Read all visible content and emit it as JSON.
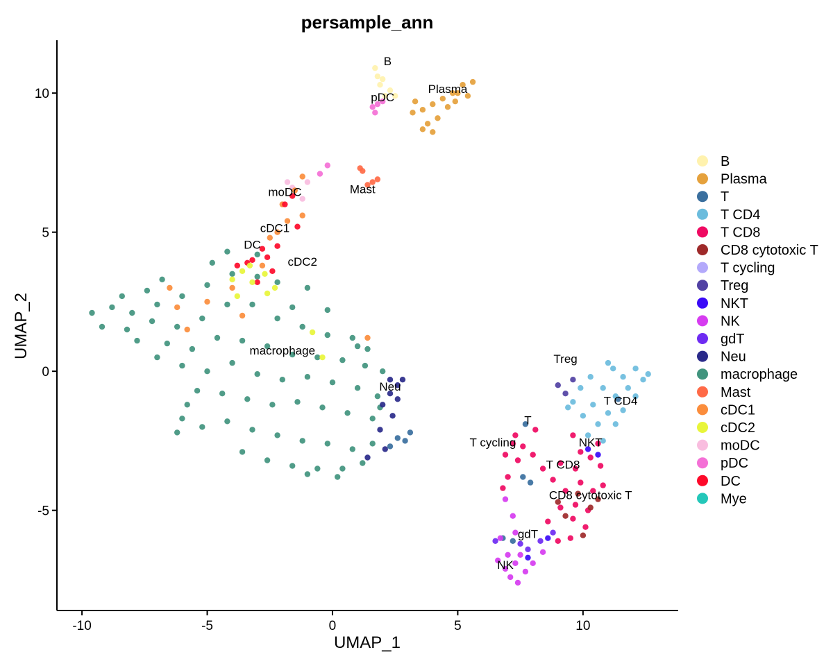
{
  "chart_data": {
    "type": "scatter",
    "title": "persample_ann",
    "xlabel": "UMAP_1",
    "ylabel": "UMAP_2",
    "xlim": [
      -11,
      13.8
    ],
    "ylim": [
      -8.6,
      11.9
    ],
    "xticks": [
      -10,
      -5,
      0,
      5,
      10
    ],
    "yticks": [
      -5,
      0,
      5,
      10
    ],
    "grid": false,
    "legend_position": "right",
    "legend": [
      {
        "name": "B",
        "color": "#FFF2AE"
      },
      {
        "name": "Plasma",
        "color": "#E5A13C"
      },
      {
        "name": "T",
        "color": "#3A6F9E"
      },
      {
        "name": "T CD4",
        "color": "#6BBCDD"
      },
      {
        "name": "T CD8",
        "color": "#EF0A62"
      },
      {
        "name": "CD8 cytotoxic T",
        "color": "#9E2A2A"
      },
      {
        "name": "T cycling",
        "color": "#B3A9FB"
      },
      {
        "name": "Treg",
        "color": "#5141A3"
      },
      {
        "name": "NKT",
        "color": "#3A0AF7"
      },
      {
        "name": "NK",
        "color": "#D63CF0"
      },
      {
        "name": "gdT",
        "color": "#6E2BF2"
      },
      {
        "name": "Neu",
        "color": "#2A2A8A"
      },
      {
        "name": "macrophage",
        "color": "#41947E"
      },
      {
        "name": "Mast",
        "color": "#FF6A47"
      },
      {
        "name": "cDC1",
        "color": "#FB8D3C"
      },
      {
        "name": "cDC2",
        "color": "#E8F53A"
      },
      {
        "name": "moDC",
        "color": "#F9BDDF"
      },
      {
        "name": "pDC",
        "color": "#F470D6"
      },
      {
        "name": "DC",
        "color": "#FD0A2A"
      },
      {
        "name": "Mye",
        "color": "#24C7B9"
      }
    ],
    "cluster_labels": [
      {
        "text": "B",
        "x": 2.2,
        "y": 11.0
      },
      {
        "text": "Plasma",
        "x": 4.6,
        "y": 10.0
      },
      {
        "text": "pDC",
        "x": 2.0,
        "y": 9.7
      },
      {
        "text": "Mast",
        "x": 1.2,
        "y": 6.4
      },
      {
        "text": "moDC",
        "x": -1.9,
        "y": 6.3
      },
      {
        "text": "cDC1",
        "x": -2.3,
        "y": 5.0
      },
      {
        "text": "DC",
        "x": -3.2,
        "y": 4.4
      },
      {
        "text": "cDC2",
        "x": -1.2,
        "y": 3.8
      },
      {
        "text": "macrophage",
        "x": -2.0,
        "y": 0.6
      },
      {
        "text": "Neu",
        "x": 2.3,
        "y": -0.7
      },
      {
        "text": "Treg",
        "x": 9.3,
        "y": 0.3
      },
      {
        "text": "T CD4",
        "x": 11.5,
        "y": -1.2
      },
      {
        "text": "T",
        "x": 7.8,
        "y": -1.9
      },
      {
        "text": "T cycling",
        "x": 6.4,
        "y": -2.7
      },
      {
        "text": "NKT",
        "x": 10.3,
        "y": -2.7
      },
      {
        "text": "T CD8",
        "x": 9.2,
        "y": -3.5
      },
      {
        "text": "CD8 cytotoxic T",
        "x": 10.3,
        "y": -4.6
      },
      {
        "text": "gdT",
        "x": 7.8,
        "y": -6.0
      },
      {
        "text": "NK",
        "x": 6.9,
        "y": -7.1
      }
    ],
    "clusters": [
      {
        "name": "macrophage",
        "points": [
          [
            -9.6,
            2.1
          ],
          [
            -8.8,
            2.3
          ],
          [
            -8.0,
            2.1
          ],
          [
            -7.0,
            2.4
          ],
          [
            -6.0,
            2.7
          ],
          [
            -5.0,
            3.1
          ],
          [
            -4.0,
            3.5
          ],
          [
            -3.0,
            3.4
          ],
          [
            -2.2,
            3.2
          ],
          [
            -1.6,
            2.3
          ],
          [
            -9.2,
            1.6
          ],
          [
            -8.2,
            1.5
          ],
          [
            -7.2,
            1.8
          ],
          [
            -6.2,
            1.6
          ],
          [
            -5.2,
            1.9
          ],
          [
            -4.2,
            2.4
          ],
          [
            -3.2,
            2.4
          ],
          [
            -2.2,
            1.9
          ],
          [
            -1.2,
            1.6
          ],
          [
            -0.2,
            1.3
          ],
          [
            0.8,
            1.2
          ],
          [
            1.4,
            0.8
          ],
          [
            -7.8,
            1.1
          ],
          [
            -6.6,
            1.0
          ],
          [
            -5.6,
            0.8
          ],
          [
            -4.6,
            1.2
          ],
          [
            -3.6,
            1.1
          ],
          [
            -2.6,
            0.9
          ],
          [
            -1.6,
            0.6
          ],
          [
            -0.6,
            0.5
          ],
          [
            0.4,
            0.4
          ],
          [
            1.3,
            0.2
          ],
          [
            2.0,
            0.0
          ],
          [
            -6.0,
            0.2
          ],
          [
            -5.0,
            0.0
          ],
          [
            -4.0,
            0.3
          ],
          [
            -3.0,
            -0.1
          ],
          [
            -2.0,
            -0.3
          ],
          [
            -1.0,
            -0.2
          ],
          [
            0.0,
            -0.4
          ],
          [
            1.0,
            -0.6
          ],
          [
            1.8,
            -0.9
          ],
          [
            -5.4,
            -0.7
          ],
          [
            -4.4,
            -0.8
          ],
          [
            -3.4,
            -1.0
          ],
          [
            -2.4,
            -1.2
          ],
          [
            -1.4,
            -1.1
          ],
          [
            -0.4,
            -1.3
          ],
          [
            0.6,
            -1.5
          ],
          [
            1.6,
            -1.7
          ],
          [
            -6.0,
            -1.7
          ],
          [
            -5.2,
            -2.0
          ],
          [
            -6.2,
            -2.2
          ],
          [
            -4.2,
            -1.8
          ],
          [
            -3.2,
            -2.1
          ],
          [
            -2.2,
            -2.3
          ],
          [
            -1.2,
            -2.5
          ],
          [
            -0.2,
            -2.6
          ],
          [
            0.8,
            -2.8
          ],
          [
            1.6,
            -2.6
          ],
          [
            -3.6,
            -2.9
          ],
          [
            -2.6,
            -3.2
          ],
          [
            -1.6,
            -3.4
          ],
          [
            -0.6,
            -3.5
          ],
          [
            0.4,
            -3.5
          ],
          [
            1.2,
            -3.3
          ],
          [
            -4.8,
            3.9
          ],
          [
            -4.2,
            4.3
          ],
          [
            -3.0,
            4.2
          ],
          [
            -8.4,
            2.7
          ],
          [
            -7.4,
            2.9
          ],
          [
            -6.8,
            3.3
          ],
          [
            -1.0,
            3.0
          ],
          [
            -0.2,
            2.2
          ],
          [
            1.0,
            0.9
          ],
          [
            -7.0,
            0.5
          ],
          [
            -5.8,
            -1.2
          ],
          [
            -1.0,
            -3.7
          ],
          [
            0.2,
            -3.8
          ],
          [
            1.9,
            -1.3
          ]
        ]
      },
      {
        "name": "Neu",
        "points": [
          [
            2.3,
            -0.3
          ],
          [
            2.6,
            -0.5
          ],
          [
            2.3,
            -0.8
          ],
          [
            2.6,
            -1.0
          ],
          [
            2.0,
            -1.2
          ],
          [
            2.4,
            -1.6
          ],
          [
            1.9,
            -2.1
          ],
          [
            2.1,
            -2.8
          ],
          [
            1.4,
            -3.1
          ],
          [
            2.8,
            -0.3
          ]
        ]
      },
      {
        "name": "T",
        "points": [
          [
            2.6,
            -2.4
          ],
          [
            2.9,
            -2.5
          ],
          [
            3.1,
            -2.2
          ],
          [
            2.3,
            -2.7
          ],
          [
            7.6,
            -3.8
          ],
          [
            7.9,
            -4.0
          ],
          [
            7.2,
            -6.1
          ],
          [
            6.8,
            -6.0
          ],
          [
            11.4,
            -1.0
          ],
          [
            7.7,
            -1.9
          ]
        ]
      },
      {
        "name": "Plasma",
        "points": [
          [
            3.6,
            9.4
          ],
          [
            4.0,
            9.6
          ],
          [
            4.4,
            9.8
          ],
          [
            4.8,
            10.0
          ],
          [
            5.2,
            10.3
          ],
          [
            5.0,
            10.0
          ],
          [
            4.6,
            9.5
          ],
          [
            4.2,
            9.1
          ],
          [
            3.8,
            8.9
          ],
          [
            3.3,
            9.7
          ],
          [
            5.6,
            10.4
          ],
          [
            5.4,
            9.9
          ],
          [
            3.6,
            8.7
          ],
          [
            4.0,
            8.6
          ],
          [
            3.2,
            9.3
          ],
          [
            4.9,
            9.7
          ]
        ]
      },
      {
        "name": "B",
        "points": [
          [
            1.7,
            10.9
          ],
          [
            1.8,
            10.6
          ],
          [
            2.0,
            10.5
          ],
          [
            2.3,
            10.1
          ],
          [
            1.9,
            10.3
          ],
          [
            2.1,
            9.9
          ],
          [
            2.5,
            9.9
          ]
        ]
      },
      {
        "name": "pDC",
        "points": [
          [
            1.8,
            9.6
          ],
          [
            1.6,
            9.5
          ],
          [
            2.0,
            9.7
          ],
          [
            1.7,
            9.3
          ],
          [
            -0.2,
            7.4
          ],
          [
            -0.5,
            7.1
          ]
        ]
      },
      {
        "name": "Mast",
        "points": [
          [
            1.6,
            6.8
          ],
          [
            1.8,
            6.9
          ],
          [
            1.2,
            7.2
          ],
          [
            1.4,
            6.7
          ],
          [
            1.1,
            7.3
          ]
        ]
      },
      {
        "name": "moDC",
        "points": [
          [
            -1.6,
            6.6
          ],
          [
            -1.2,
            6.2
          ],
          [
            -1.8,
            6.8
          ],
          [
            -1.0,
            6.8
          ]
        ]
      },
      {
        "name": "cDC1",
        "points": [
          [
            -2.0,
            6.0
          ],
          [
            -1.5,
            6.5
          ],
          [
            -1.2,
            5.6
          ],
          [
            -2.2,
            5.0
          ],
          [
            -1.8,
            5.4
          ],
          [
            -2.5,
            4.8
          ],
          [
            -5.0,
            2.5
          ],
          [
            -6.2,
            2.3
          ],
          [
            -4.0,
            3.0
          ],
          [
            -1.2,
            7.0
          ],
          [
            -3.6,
            2.0
          ],
          [
            -6.5,
            3.0
          ],
          [
            -5.8,
            1.5
          ],
          [
            -2.8,
            3.8
          ],
          [
            1.4,
            1.2
          ]
        ]
      },
      {
        "name": "DC",
        "points": [
          [
            -3.2,
            4.0
          ],
          [
            -2.8,
            4.4
          ],
          [
            -3.4,
            3.9
          ],
          [
            -2.4,
            3.6
          ],
          [
            -2.6,
            4.1
          ],
          [
            -1.6,
            6.3
          ],
          [
            -1.4,
            5.2
          ],
          [
            -3.8,
            3.8
          ],
          [
            -2.2,
            4.5
          ],
          [
            -3.0,
            3.2
          ],
          [
            -1.9,
            6.0
          ]
        ]
      },
      {
        "name": "cDC2",
        "points": [
          [
            -3.6,
            3.6
          ],
          [
            -3.2,
            3.2
          ],
          [
            -2.7,
            3.5
          ],
          [
            -4.0,
            3.3
          ],
          [
            -3.3,
            3.8
          ],
          [
            -2.3,
            3.0
          ],
          [
            -3.8,
            2.7
          ],
          [
            -2.6,
            2.8
          ],
          [
            -0.8,
            1.4
          ],
          [
            -0.4,
            0.5
          ]
        ]
      },
      {
        "name": "T CD4",
        "points": [
          [
            11.2,
            0.1
          ],
          [
            11.6,
            -0.2
          ],
          [
            12.1,
            0.1
          ],
          [
            12.4,
            -0.3
          ],
          [
            11.8,
            -0.6
          ],
          [
            11.3,
            -0.9
          ],
          [
            10.8,
            -0.6
          ],
          [
            10.3,
            -0.2
          ],
          [
            9.9,
            -0.6
          ],
          [
            10.4,
            -1.2
          ],
          [
            11.0,
            -1.5
          ],
          [
            11.6,
            -1.4
          ],
          [
            12.1,
            -0.9
          ],
          [
            9.6,
            -1.1
          ],
          [
            10.0,
            -1.6
          ],
          [
            10.6,
            -1.9
          ],
          [
            11.3,
            -1.9
          ],
          [
            10.2,
            -2.3
          ],
          [
            10.8,
            -2.5
          ],
          [
            12.6,
            -0.1
          ],
          [
            11.0,
            0.3
          ],
          [
            9.4,
            -1.3
          ]
        ]
      },
      {
        "name": "Treg",
        "points": [
          [
            9.0,
            -0.5
          ],
          [
            9.3,
            -0.8
          ],
          [
            9.6,
            -0.3
          ]
        ]
      },
      {
        "name": "T CD8",
        "points": [
          [
            9.6,
            -2.3
          ],
          [
            9.9,
            -2.9
          ],
          [
            10.3,
            -3.1
          ],
          [
            10.7,
            -3.4
          ],
          [
            9.7,
            -3.5
          ],
          [
            9.1,
            -3.3
          ],
          [
            9.9,
            -4.0
          ],
          [
            10.4,
            -4.3
          ],
          [
            9.3,
            -4.3
          ],
          [
            9.7,
            -4.8
          ],
          [
            10.2,
            -5.0
          ],
          [
            9.1,
            -4.9
          ],
          [
            9.6,
            -5.3
          ],
          [
            10.1,
            -5.6
          ],
          [
            9.5,
            -6.0
          ],
          [
            8.8,
            -3.9
          ],
          [
            8.4,
            -3.5
          ],
          [
            7.6,
            -2.7
          ],
          [
            7.2,
            -2.6
          ],
          [
            6.9,
            -3.0
          ],
          [
            7.4,
            -3.2
          ],
          [
            8.0,
            -3.0
          ],
          [
            7.0,
            -3.8
          ],
          [
            6.8,
            -4.2
          ],
          [
            7.3,
            -2.3
          ],
          [
            8.1,
            -2.1
          ],
          [
            10.8,
            -4.1
          ],
          [
            10.6,
            -2.6
          ],
          [
            9.0,
            -6.1
          ],
          [
            8.6,
            -5.4
          ]
        ]
      },
      {
        "name": "CD8 cytotoxic T",
        "points": [
          [
            9.8,
            -4.4
          ],
          [
            10.3,
            -4.9
          ],
          [
            9.3,
            -5.2
          ],
          [
            10.0,
            -5.9
          ],
          [
            9.0,
            -4.7
          ],
          [
            10.6,
            -4.6
          ]
        ]
      },
      {
        "name": "NKT",
        "points": [
          [
            10.2,
            -2.8
          ],
          [
            10.6,
            -3.0
          ]
        ]
      },
      {
        "name": "NK",
        "points": [
          [
            7.0,
            -6.6
          ],
          [
            7.3,
            -6.9
          ],
          [
            6.9,
            -7.1
          ],
          [
            7.5,
            -6.6
          ],
          [
            7.7,
            -7.2
          ],
          [
            7.1,
            -7.4
          ],
          [
            7.4,
            -7.6
          ],
          [
            8.0,
            -6.9
          ],
          [
            8.4,
            -6.5
          ],
          [
            6.6,
            -6.8
          ],
          [
            6.9,
            -4.6
          ],
          [
            7.2,
            -5.2
          ],
          [
            7.3,
            -5.8
          ],
          [
            6.7,
            -6.0
          ]
        ]
      },
      {
        "name": "gdT",
        "points": [
          [
            7.8,
            -6.4
          ],
          [
            8.3,
            -6.1
          ],
          [
            8.8,
            -5.8
          ],
          [
            7.5,
            -6.2
          ],
          [
            6.5,
            -6.1
          ]
        ]
      },
      {
        "name": "NKT",
        "points": [
          [
            7.8,
            -6.7
          ],
          [
            8.6,
            -6.0
          ]
        ]
      }
    ]
  }
}
